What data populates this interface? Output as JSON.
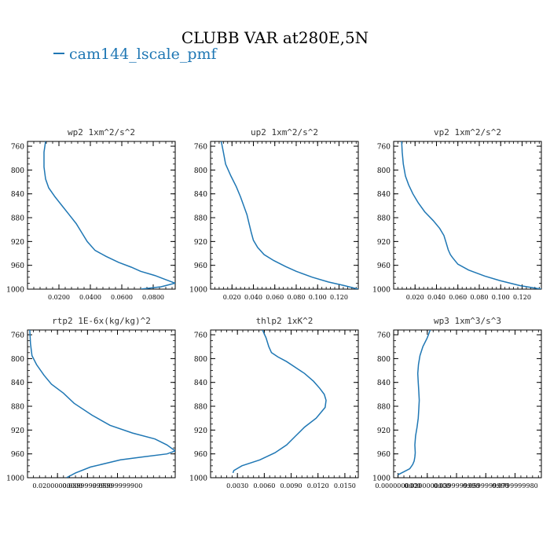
{
  "figure": {
    "title": "CLUBB VAR at280E,5N",
    "legend_label": "cam144_lscale_pmf",
    "line_color": "#1f77b4"
  },
  "chart_data": [
    {
      "type": "line",
      "title": "wp2  1xm^2/s^2",
      "x_ticks": [
        "0.0200",
        "0.0400",
        "0.0600",
        "0.0800"
      ],
      "x_tick_values": [
        0.02,
        0.04,
        0.06,
        0.08
      ],
      "xlim": [
        0.0,
        0.094
      ],
      "ylim": [
        1000,
        752
      ],
      "y_ticks": [
        "760",
        "800",
        "840",
        "880",
        "920",
        "960",
        "1000"
      ],
      "series": [
        {
          "x": [
            0.0115,
            0.0105,
            0.0105,
            0.0115,
            0.0135,
            0.0175,
            0.022,
            0.0265,
            0.031,
            0.0345,
            0.038,
            0.043,
            0.05,
            0.058,
            0.066,
            0.072,
            0.081,
            0.088,
            0.094,
            0.085,
            0.072
          ],
          "y": [
            752,
            770,
            795,
            815,
            830,
            845,
            860,
            875,
            890,
            905,
            920,
            935,
            945,
            955,
            963,
            970,
            977,
            984,
            990,
            996,
            1000
          ]
        }
      ]
    },
    {
      "type": "line",
      "title": "up2  1xm^2/s^2",
      "x_ticks": [
        "0.020",
        "0.040",
        "0.060",
        "0.080",
        "0.100",
        "0.120"
      ],
      "x_tick_values": [
        0.02,
        0.04,
        0.06,
        0.08,
        0.1,
        0.12
      ],
      "xlim": [
        0.0,
        0.138
      ],
      "ylim": [
        1000,
        752
      ],
      "y_ticks": [
        "760",
        "800",
        "840",
        "880",
        "920",
        "960",
        "1000"
      ],
      "series": [
        {
          "x": [
            0.01,
            0.012,
            0.014,
            0.019,
            0.024,
            0.028,
            0.031,
            0.034,
            0.036,
            0.038,
            0.04,
            0.044,
            0.05,
            0.059,
            0.07,
            0.08,
            0.095,
            0.11,
            0.125,
            0.138
          ],
          "y": [
            752,
            770,
            790,
            810,
            828,
            845,
            860,
            875,
            890,
            905,
            918,
            930,
            942,
            952,
            962,
            970,
            980,
            988,
            994,
            1000
          ]
        }
      ]
    },
    {
      "type": "line",
      "title": "vp2  1xm^2/s^2",
      "x_ticks": [
        "0.020",
        "0.040",
        "0.060",
        "0.080",
        "0.100",
        "0.120"
      ],
      "x_tick_values": [
        0.02,
        0.04,
        0.06,
        0.08,
        0.1,
        0.12
      ],
      "xlim": [
        0.0,
        0.138
      ],
      "ylim": [
        1000,
        752
      ],
      "y_ticks": [
        "760",
        "800",
        "840",
        "880",
        "920",
        "960",
        "1000"
      ],
      "series": [
        {
          "x": [
            0.0075,
            0.008,
            0.009,
            0.011,
            0.014,
            0.018,
            0.023,
            0.029,
            0.037,
            0.043,
            0.047,
            0.049,
            0.051,
            0.053,
            0.055,
            0.06,
            0.07,
            0.085,
            0.1,
            0.118,
            0.138
          ],
          "y": [
            752,
            770,
            790,
            810,
            825,
            840,
            855,
            870,
            885,
            898,
            910,
            922,
            934,
            942,
            947,
            958,
            968,
            978,
            986,
            994,
            1000
          ]
        }
      ]
    },
    {
      "type": "line",
      "title": "rtp2  1E-6x(kg/kg)^2",
      "x_ticks": [
        "0.02000000000",
        "0.03999999900",
        "0.05999999900"
      ],
      "x_tick_values": [
        0.02,
        0.04,
        0.06
      ],
      "xlim": [
        0.0,
        0.0985
      ],
      "ylim": [
        1000,
        752
      ],
      "y_ticks": [
        "760",
        "800",
        "840",
        "880",
        "920",
        "960",
        "1000"
      ],
      "series": [
        {
          "x": [
            0.0015,
            0.002,
            0.003,
            0.006,
            0.011,
            0.016,
            0.024,
            0.031,
            0.043,
            0.055,
            0.07,
            0.085,
            0.093,
            0.0985,
            0.093,
            0.077,
            0.062,
            0.042,
            0.032,
            0.026
          ],
          "y": [
            752,
            775,
            795,
            810,
            828,
            843,
            858,
            875,
            895,
            912,
            925,
            935,
            945,
            955,
            960,
            965,
            970,
            982,
            992,
            1000
          ]
        }
      ]
    },
    {
      "type": "line",
      "title": "thlp2  1xK^2",
      "x_ticks": [
        "0.0030",
        "0.0060",
        "0.0090",
        "0.0120",
        "0.0150"
      ],
      "x_tick_values": [
        0.003,
        0.006,
        0.009,
        0.012,
        0.015
      ],
      "xlim": [
        0.0,
        0.0165
      ],
      "ylim": [
        1000,
        752
      ],
      "y_ticks": [
        "760",
        "800",
        "840",
        "880",
        "920",
        "960",
        "1000"
      ],
      "series": [
        {
          "x": [
            0.0058,
            0.0062,
            0.0065,
            0.0068,
            0.0075,
            0.0085,
            0.0095,
            0.0105,
            0.0115,
            0.0122,
            0.0127,
            0.0129,
            0.0128,
            0.0118,
            0.0105,
            0.0095,
            0.0085,
            0.0072,
            0.0055,
            0.0035,
            0.0026,
            0.0025
          ],
          "y": [
            752,
            765,
            780,
            790,
            797,
            805,
            815,
            825,
            838,
            850,
            860,
            870,
            882,
            900,
            915,
            930,
            945,
            958,
            970,
            980,
            988,
            992
          ]
        }
      ]
    },
    {
      "type": "line",
      "title": "wp3  1xm^3/s^3",
      "x_ticks": [
        "0.0000000000",
        "0.0200000000",
        "0.0399999990",
        "0.0599999990",
        "0.0799999980"
      ],
      "x_tick_values": [
        0.0,
        0.02,
        0.04,
        0.06,
        0.08
      ],
      "xlim": [
        -0.003,
        0.098
      ],
      "ylim": [
        1000,
        752
      ],
      "y_ticks": [
        "760",
        "800",
        "840",
        "880",
        "920",
        "960",
        "1000"
      ],
      "series": [
        {
          "x": [
            0.022,
            0.02,
            0.017,
            0.015,
            0.014,
            0.0135,
            0.0138,
            0.0142,
            0.0145,
            0.0142,
            0.0138,
            0.013,
            0.012,
            0.0115,
            0.0118,
            0.0115,
            0.011,
            0.01,
            0.008,
            0.004,
            0.0
          ],
          "y": [
            752,
            765,
            780,
            795,
            810,
            825,
            840,
            855,
            870,
            885,
            900,
            915,
            930,
            945,
            958,
            965,
            972,
            978,
            985,
            990,
            995
          ]
        }
      ]
    }
  ]
}
